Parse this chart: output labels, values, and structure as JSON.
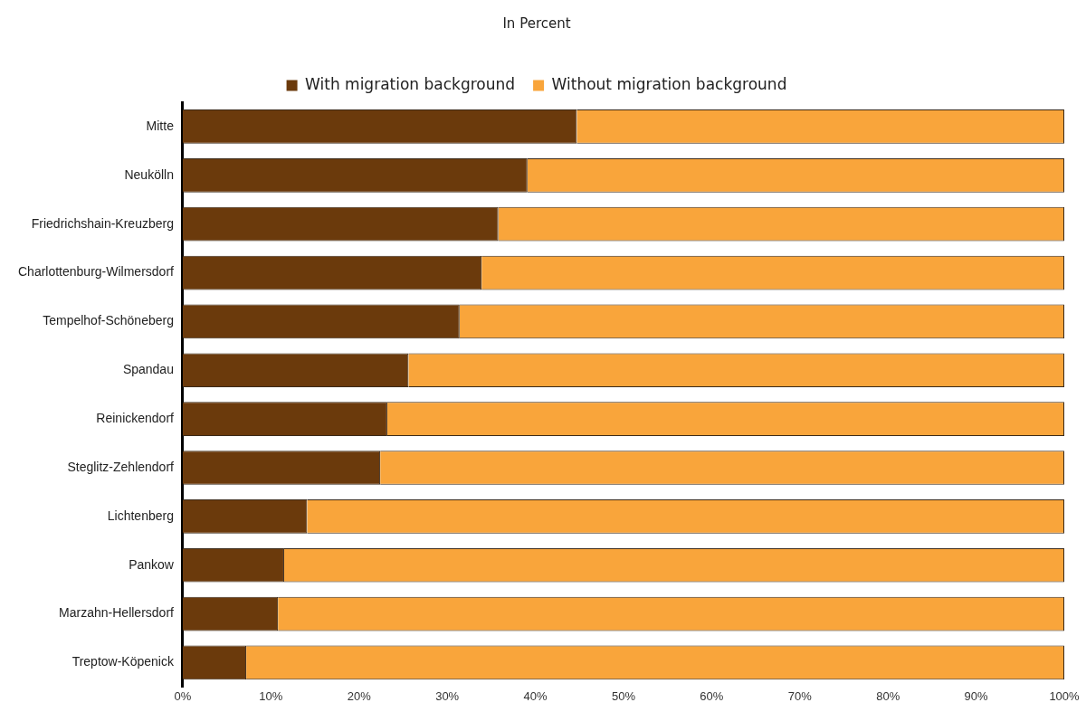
{
  "chart_data": {
    "type": "bar",
    "title": "In Percent",
    "orientation": "horizontal",
    "stacked": true,
    "legend": "top",
    "categories": [
      "Mitte",
      "Neukölln",
      "Friedrichshain-Kreuzberg",
      "Charlottenburg-Wilmersdorf",
      "Tempelhof-Schöneberg",
      "Spandau",
      "Reinickendorf",
      "Steglitz-Zehlendorf",
      "Lichtenberg",
      "Pankow",
      "Marzahn-Hellersdorf",
      "Treptow-Köpenick"
    ],
    "series": [
      {
        "name": "With migration background",
        "color": "#6b3a0c",
        "values": [
          44.7,
          39.1,
          35.8,
          33.9,
          31.4,
          25.6,
          23.2,
          22.4,
          14.1,
          11.5,
          10.8,
          7.2
        ]
      },
      {
        "name": "Without migration background",
        "color": "#f9a53b",
        "values": [
          55.3,
          60.9,
          64.2,
          66.1,
          68.6,
          74.4,
          76.8,
          77.6,
          85.9,
          88.5,
          89.2,
          92.8
        ]
      }
    ],
    "xlim": [
      0,
      100
    ],
    "xticks": [
      {
        "value": 0,
        "label": "0%"
      },
      {
        "value": 10,
        "label": "10%"
      },
      {
        "value": 20,
        "label": "20%"
      },
      {
        "value": 30,
        "label": "30%"
      },
      {
        "value": 40,
        "label": "40%"
      },
      {
        "value": 50,
        "label": "50%"
      },
      {
        "value": 60,
        "label": "60%"
      },
      {
        "value": 70,
        "label": "70%"
      },
      {
        "value": 80,
        "label": "80%"
      },
      {
        "value": 90,
        "label": "90%"
      },
      {
        "value": 100,
        "label": "100%"
      }
    ]
  }
}
